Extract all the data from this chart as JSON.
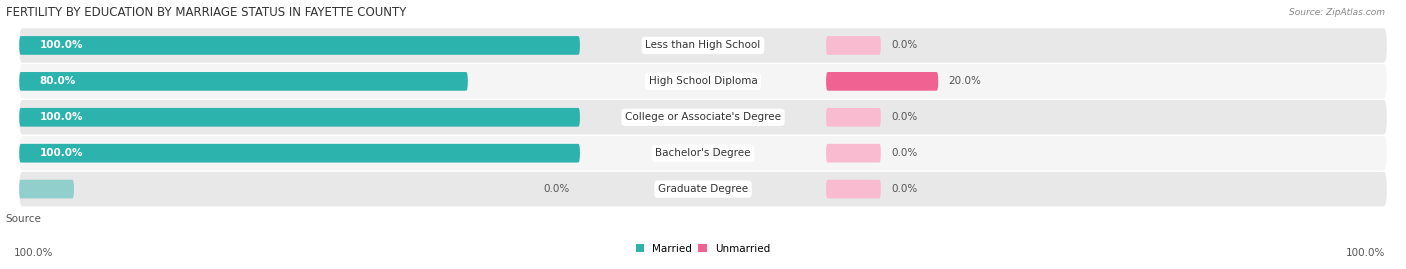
{
  "title": "FERTILITY BY EDUCATION BY MARRIAGE STATUS IN FAYETTE COUNTY",
  "source": "Source: ZipAtlas.com",
  "categories": [
    "Less than High School",
    "High School Diploma",
    "College or Associate's Degree",
    "Bachelor's Degree",
    "Graduate Degree"
  ],
  "married_values": [
    100.0,
    80.0,
    100.0,
    100.0,
    0.0
  ],
  "unmarried_values": [
    0.0,
    20.0,
    0.0,
    0.0,
    0.0
  ],
  "married_color": "#2db3ae",
  "unmarried_color": "#f06292",
  "married_color_light": "#90cfcc",
  "unmarried_color_light": "#f8bbd0",
  "background_color": "#ffffff",
  "row_bg_even": "#e8e8e8",
  "row_bg_odd": "#f5f5f5",
  "title_fontsize": 8.5,
  "label_fontsize": 7.5,
  "value_fontsize": 7.5,
  "source_fontsize": 6.5,
  "legend_fontsize": 7.5,
  "figsize": [
    14.06,
    2.69
  ],
  "dpi": 100
}
